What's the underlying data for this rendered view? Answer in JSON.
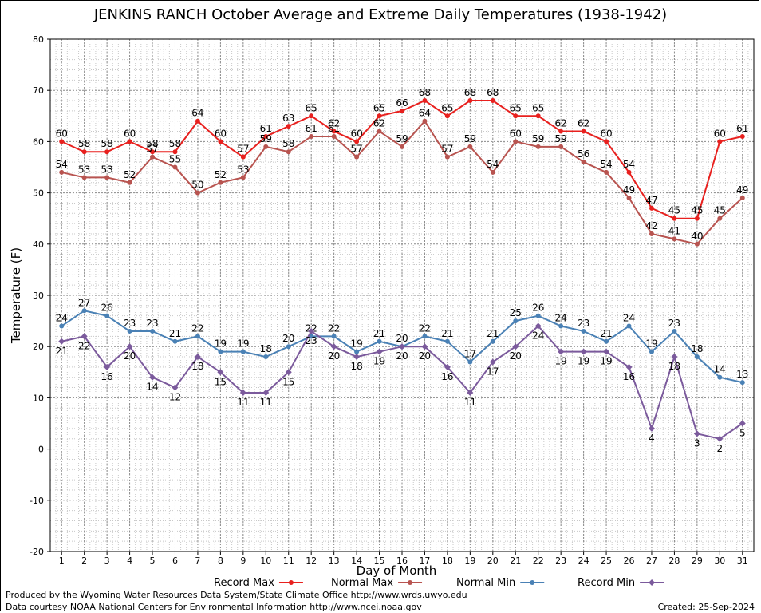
{
  "title": "JENKINS RANCH October Average and Extreme Daily Temperatures (1938-1942)",
  "footer": {
    "produced_by": "Produced by the Wyoming Water Resources Data System/State Climate Office http://www.wrds.uwyo.edu",
    "courtesy": "Data courtesy NOAA National Centers for Environmental Information http://www.ncei.noaa.gov",
    "created": "Created:  25-Sep-2024"
  },
  "chart_data": {
    "type": "line",
    "title": "JENKINS RANCH October Average and Extreme Daily Temperatures (1938-1942)",
    "xlabel": "Day of Month",
    "ylabel": "Temperature (F)",
    "x": [
      1,
      2,
      3,
      4,
      5,
      6,
      7,
      8,
      9,
      10,
      11,
      12,
      13,
      14,
      15,
      16,
      17,
      18,
      19,
      20,
      21,
      22,
      23,
      24,
      25,
      26,
      27,
      28,
      29,
      30,
      31
    ],
    "ylim": [
      -20,
      80
    ],
    "yticks": [
      -20,
      -10,
      0,
      10,
      20,
      30,
      40,
      50,
      60,
      70,
      80
    ],
    "grid": true,
    "legend_position": "bottom",
    "series": [
      {
        "name": "Record Max",
        "color": "#e8201e",
        "label_pos": "above",
        "values": [
          60,
          58,
          58,
          60,
          58,
          58,
          64,
          60,
          57,
          61,
          63,
          65,
          62,
          60,
          65,
          66,
          68,
          65,
          68,
          68,
          65,
          65,
          62,
          62,
          60,
          54,
          47,
          45,
          45,
          60,
          61
        ]
      },
      {
        "name": "Normal Max",
        "color": "#b85450",
        "label_pos": "above",
        "values": [
          54,
          53,
          53,
          52,
          57,
          55,
          50,
          52,
          53,
          59,
          58,
          61,
          61,
          57,
          62,
          59,
          64,
          57,
          59,
          54,
          60,
          59,
          59,
          56,
          54,
          49,
          42,
          41,
          40,
          45,
          49
        ]
      },
      {
        "name": "Normal Min",
        "color": "#4a81b5",
        "label_pos": "above",
        "values": [
          24,
          27,
          26,
          23,
          23,
          21,
          22,
          19,
          19,
          18,
          20,
          22,
          22,
          19,
          21,
          20,
          22,
          21,
          17,
          21,
          25,
          26,
          24,
          23,
          21,
          24,
          19,
          23,
          18,
          14,
          13
        ]
      },
      {
        "name": "Record Min",
        "color": "#7b5a9c",
        "label_pos": "below",
        "values": [
          21,
          22,
          16,
          20,
          14,
          12,
          18,
          15,
          11,
          11,
          15,
          23,
          20,
          18,
          19,
          20,
          20,
          16,
          11,
          17,
          20,
          24,
          19,
          19,
          19,
          16,
          4,
          18,
          3,
          2,
          5
        ]
      }
    ]
  }
}
